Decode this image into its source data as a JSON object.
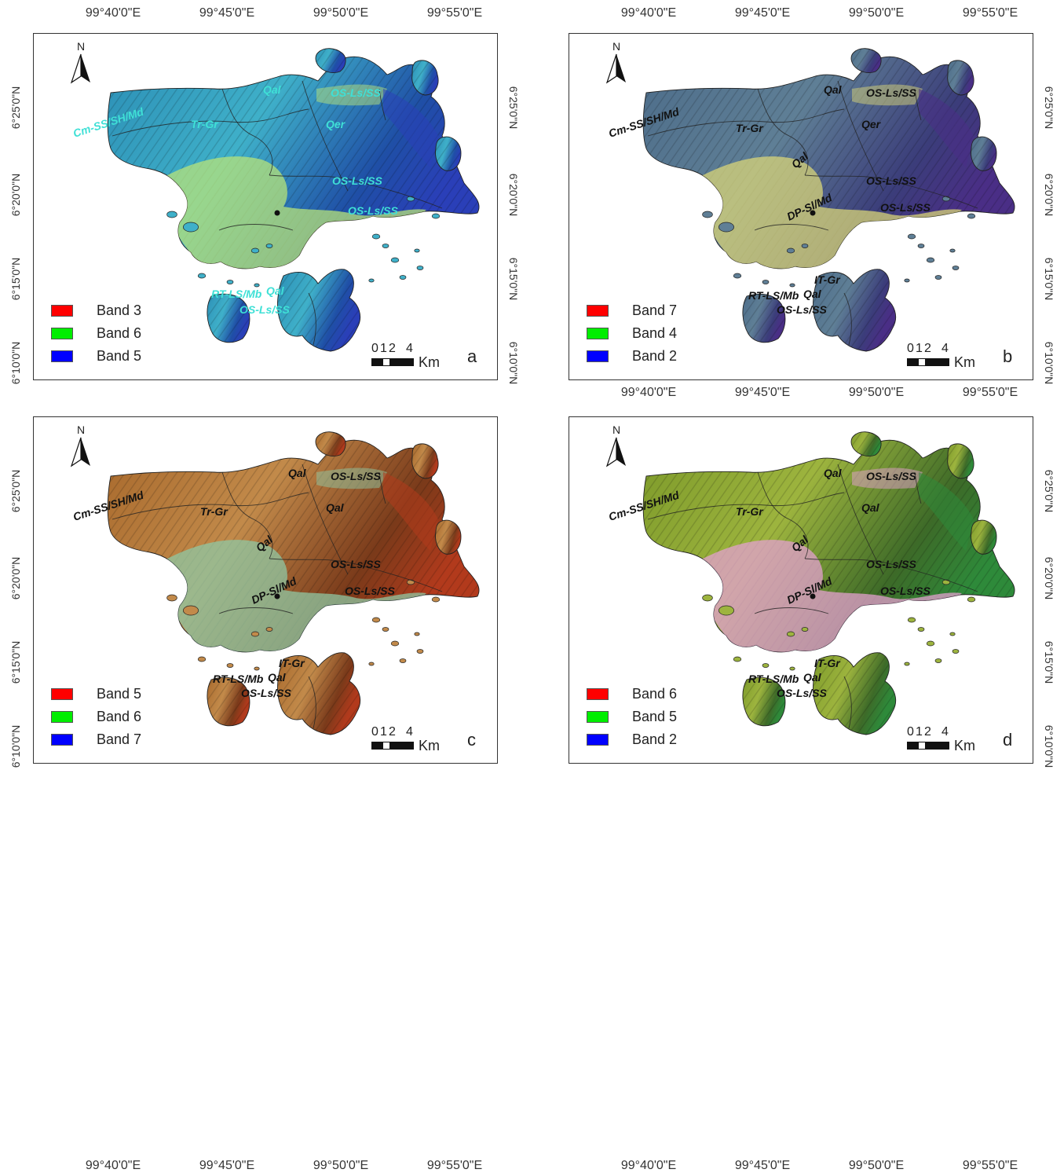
{
  "longitude_labels": [
    "99°40'0\"E",
    "99°45'0\"E",
    "99°50'0\"E",
    "99°55'0\"E"
  ],
  "latitude_labels": [
    "6°25'0\"N",
    "6°20'0\"N",
    "6°15'0\"N",
    "6°10'0\"N"
  ],
  "north_arrow_letter": "N",
  "scale": {
    "ticks": [
      "0",
      "1",
      "2",
      "4"
    ],
    "unit": "Km"
  },
  "panels": [
    {
      "letter": "a",
      "palette": {
        "base": "#2c8fb6",
        "mid": "#3fb0c9",
        "light": "#b7e37a",
        "dark": "#1f4fa6",
        "accent": "#2a3fb8",
        "label": "#3fe0d6"
      },
      "legend": [
        {
          "label": "Band 3",
          "color": "#ff0000"
        },
        {
          "label": "Band 6",
          "color": "#00ee00"
        },
        {
          "label": "Band 5",
          "color": "#0000ff"
        }
      ],
      "geo_labels": [
        "Cm-SS/SH/Md",
        "Tr-Gr",
        "Qal",
        "OS-Ls/SS",
        "Qer",
        "OS-Ls/SS",
        "OS-Ls/SS",
        "RT-LS/Mb",
        "Qal",
        "OS-Ls/SS"
      ]
    },
    {
      "letter": "b",
      "palette": {
        "base": "#4d6d8a",
        "mid": "#5f7f96",
        "light": "#d8d478",
        "dark": "#3b3d7a",
        "accent": "#4a2e86",
        "label": "#111111"
      },
      "legend": [
        {
          "label": "Band 7",
          "color": "#ff0000"
        },
        {
          "label": "Band 4",
          "color": "#00ee00"
        },
        {
          "label": "Band 2",
          "color": "#0000ff"
        }
      ],
      "geo_labels": [
        "Cm-SS/SH/Md",
        "Tr-Gr",
        "Qal",
        "Qal",
        "OS-Ls/SS",
        "Qer",
        "OS-Ls/SS",
        "DP-Sl/Md",
        "OS-Ls/SS",
        "IT-Gr",
        "RT-LS/Mb",
        "Qal",
        "OS-Ls/SS"
      ]
    },
    {
      "letter": "c",
      "palette": {
        "base": "#a8692c",
        "mid": "#c28a4a",
        "light": "#8fc7a3",
        "dark": "#7a3a1a",
        "accent": "#b23a1c",
        "label": "#111111"
      },
      "legend": [
        {
          "label": "Band 5",
          "color": "#ff0000"
        },
        {
          "label": "Band 6",
          "color": "#00ee00"
        },
        {
          "label": "Band 7",
          "color": "#0000ff"
        }
      ],
      "geo_labels": [
        "Cm-SS/SH/Md",
        "Tr-Gr",
        "Qal",
        "Qal",
        "OS-Ls/SS",
        "Qal",
        "OS-Ls/SS",
        "DP-Sl/Md",
        "OS-Ls/SS",
        "IT-Gr",
        "RT-LS/Mb",
        "Qal",
        "OS-Ls/SS"
      ]
    },
    {
      "letter": "d",
      "palette": {
        "base": "#7d9a2a",
        "mid": "#9db43e",
        "light": "#e3a0cf",
        "dark": "#3d6a28",
        "accent": "#2e8a3a",
        "label": "#111111"
      },
      "legend": [
        {
          "label": "Band 6",
          "color": "#ff0000"
        },
        {
          "label": "Band 5",
          "color": "#00ee00"
        },
        {
          "label": "Band 2",
          "color": "#0000ff"
        }
      ],
      "geo_labels": [
        "Cm-SS/SH/Md",
        "Tr-Gr",
        "Qal",
        "Qal",
        "OS-Ls/SS",
        "Qal",
        "OS-Ls/SS",
        "DP-Sl/Md",
        "OS-Ls/SS",
        "IT-Gr",
        "RT-LS/Mb",
        "Qal",
        "OS-Ls/SS"
      ]
    }
  ]
}
